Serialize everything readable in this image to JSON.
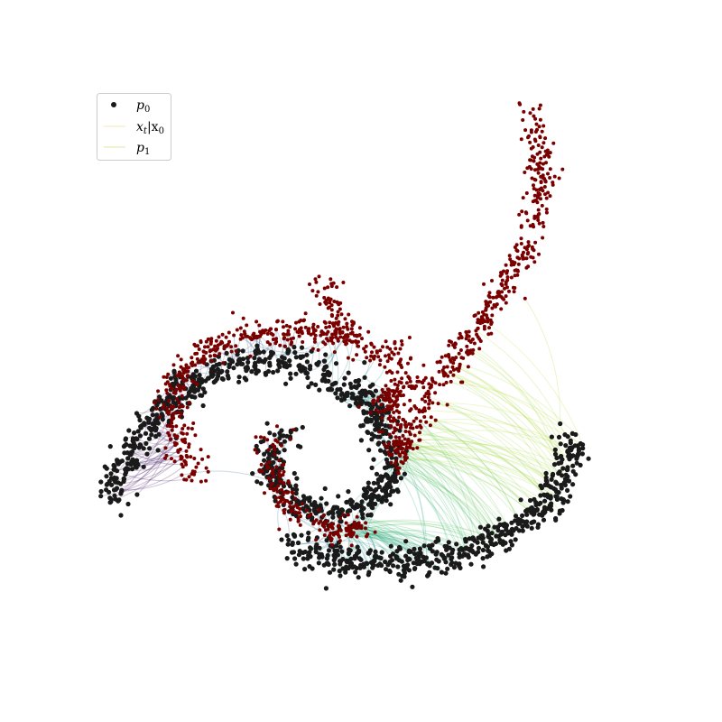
{
  "chart_data": {
    "type": "scatter",
    "title": "",
    "xlabel": "",
    "ylabel": "",
    "axes_visible": false,
    "grid": false,
    "legend_placement": "top-left",
    "legend": [
      {
        "key": "p0",
        "label_main": "p",
        "label_sub": "0",
        "marker": "dot",
        "color": "#1a1a1a"
      },
      {
        "key": "traj",
        "label_main": "x",
        "label_sub": "t",
        "label_rest": "|x",
        "label_sub2": "0",
        "marker": "line",
        "color": "#f5efc2"
      },
      {
        "key": "p1",
        "label_main": "p",
        "label_sub": "1",
        "marker": "line",
        "color": "#e8ebb8"
      }
    ],
    "colors": {
      "p0": "#1a1a1a",
      "p1": "#7a0000",
      "trajectory_colormap": [
        "#fde725",
        "#8fd744",
        "#35b779",
        "#21918c",
        "#31688e",
        "#443983",
        "#440154"
      ]
    },
    "xlim": [
      -2.0,
      2.6
    ],
    "ylim": [
      -1.6,
      3.0
    ],
    "series": [
      {
        "name": "p0",
        "kind": "points",
        "path": [
          [
            -1.85,
            -0.45
          ],
          [
            -1.6,
            0.0
          ],
          [
            -1.3,
            0.4
          ],
          [
            -0.9,
            0.65
          ],
          [
            -0.4,
            0.72
          ],
          [
            0.0,
            0.6
          ],
          [
            0.35,
            0.35
          ],
          [
            0.55,
            0.0
          ],
          [
            0.55,
            -0.35
          ],
          [
            0.2,
            -0.6
          ],
          [
            -0.2,
            -0.55
          ],
          [
            -0.45,
            -0.3
          ],
          [
            -0.45,
            -0.05
          ],
          [
            -0.3,
            0.05
          ]
        ],
        "path2": [
          [
            -0.3,
            -0.85
          ],
          [
            0.2,
            -1.0
          ],
          [
            0.8,
            -1.0
          ],
          [
            1.4,
            -0.85
          ],
          [
            1.85,
            -0.55
          ],
          [
            2.05,
            -0.2
          ],
          [
            2.1,
            0.05
          ]
        ],
        "spread": 0.07,
        "count": 1400
      },
      {
        "name": "p1",
        "kind": "points",
        "path": [
          [
            -1.1,
            -0.35
          ],
          [
            -1.25,
            0.05
          ],
          [
            -1.3,
            0.45
          ],
          [
            -1.1,
            0.75
          ],
          [
            -0.7,
            0.9
          ],
          [
            -0.2,
            0.95
          ],
          [
            0.2,
            0.9
          ],
          [
            0.6,
            0.75
          ],
          [
            0.75,
            0.5
          ],
          [
            0.4,
            0.3
          ]
        ],
        "path2": [
          [
            -0.45,
            0.05
          ],
          [
            -0.45,
            -0.3
          ],
          [
            -0.3,
            -0.6
          ],
          [
            0.05,
            -0.75
          ],
          [
            0.4,
            -0.7
          ]
        ],
        "path3": [
          [
            -0.05,
            1.4
          ],
          [
            0.1,
            1.05
          ],
          [
            0.2,
            0.9
          ]
        ],
        "path4": [
          [
            0.6,
            -0.15
          ],
          [
            0.9,
            0.45
          ],
          [
            1.3,
            1.0
          ],
          [
            1.7,
            1.6
          ],
          [
            1.85,
            2.2
          ],
          [
            1.75,
            2.8
          ]
        ],
        "path5": [
          [
            0.55,
            0.45
          ],
          [
            0.6,
            0.1
          ],
          [
            0.6,
            -0.2
          ]
        ],
        "spread": 0.06,
        "count": 1300
      },
      {
        "name": "x_t|x_0",
        "kind": "trajectories",
        "count": 520
      }
    ]
  }
}
